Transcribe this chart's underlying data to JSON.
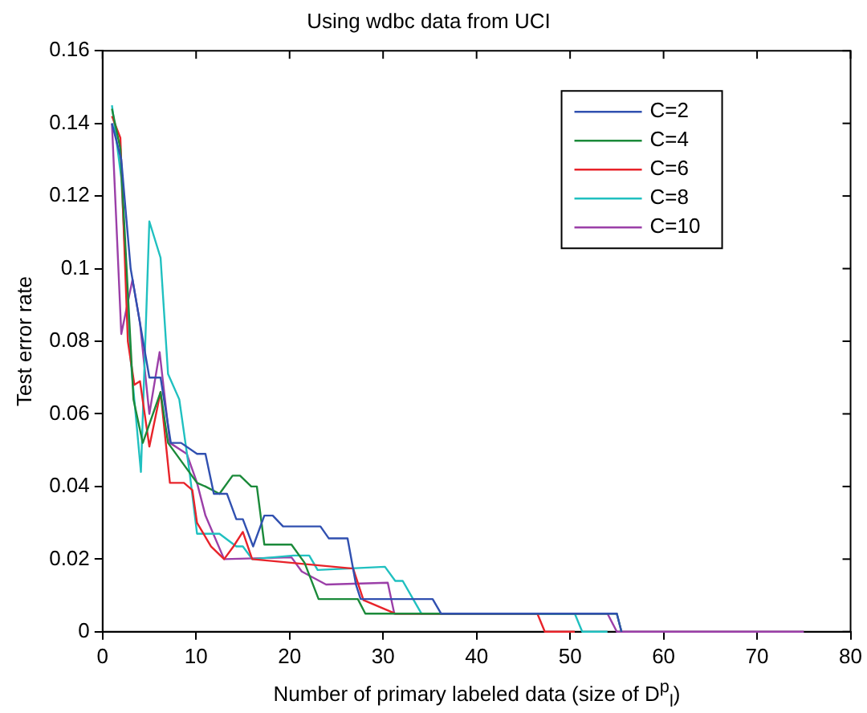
{
  "chart_data": {
    "type": "line",
    "title": "Using wdbc data from UCI",
    "xlabel": "Number of primary labeled data (size of D$^{p}$$_{l}$)",
    "ylabel": "Test error rate",
    "xlim": [
      0,
      80
    ],
    "xticks": [
      0,
      10,
      20,
      30,
      40,
      50,
      60,
      70,
      80
    ],
    "ylim": [
      0,
      0.16
    ],
    "yticks": [
      0,
      0.02,
      0.04,
      0.06,
      0.08,
      0.1,
      0.12,
      0.14,
      0.16
    ],
    "grid": false,
    "legend": "top right",
    "marker": "none",
    "line_style": "solid",
    "series": [
      {
        "name": "C=2",
        "color": "#3050b0",
        "x": [
          1,
          2,
          3,
          4,
          5,
          6.2,
          7.3,
          8.4,
          10.1,
          11,
          11.9,
          13.3,
          14.3,
          15,
          16.1,
          17.3,
          18.2,
          19.3,
          23.3,
          24.2,
          26.2,
          27.1,
          27.6,
          35.3,
          36.2,
          55,
          55.5
        ],
        "values": [
          0.14,
          0.13,
          0.1,
          0.085,
          0.07,
          0.07,
          0.052,
          0.052,
          0.049,
          0.049,
          0.038,
          0.038,
          0.031,
          0.031,
          0.0235,
          0.032,
          0.032,
          0.029,
          0.029,
          0.0257,
          0.0257,
          0.013,
          0.009,
          0.009,
          0.005,
          0.005,
          0
        ]
      },
      {
        "name": "C=4",
        "color": "#1b8a3a",
        "x": [
          1,
          1.9,
          3.3,
          4.3,
          6.2,
          7,
          10.1,
          11,
          12.5,
          13.9,
          14.7,
          15.9,
          16.5,
          17.3,
          20.2,
          21.6,
          23.1,
          27.3,
          28.1,
          55,
          55.5
        ],
        "values": [
          0.144,
          0.133,
          0.064,
          0.052,
          0.066,
          0.052,
          0.041,
          0.04,
          0.038,
          0.043,
          0.043,
          0.04,
          0.04,
          0.024,
          0.024,
          0.019,
          0.009,
          0.009,
          0.005,
          0.005,
          0
        ]
      },
      {
        "name": "C=6",
        "color": "#e8232a",
        "x": [
          1,
          1.9,
          2.7,
          3.4,
          4,
          5,
          6.2,
          7.2,
          8.7,
          9.6,
          10.1,
          11.6,
          13,
          14,
          15,
          16,
          26.8,
          27.9,
          31.3,
          46.5,
          47.3,
          50.5
        ],
        "values": [
          0.142,
          0.136,
          0.08,
          0.068,
          0.069,
          0.051,
          0.066,
          0.041,
          0.041,
          0.039,
          0.03,
          0.0235,
          0.02,
          0.0235,
          0.0275,
          0.02,
          0.0174,
          0.0087,
          0.005,
          0.005,
          0,
          0
        ]
      },
      {
        "name": "C=8",
        "color": "#20c0c0",
        "x": [
          1,
          2,
          3,
          4.1,
          5,
          6.2,
          7,
          8.2,
          9.3,
          10.1,
          12.5,
          14.3,
          15,
          16,
          20.4,
          22.1,
          23,
          30.2,
          31.3,
          32.1,
          34.1,
          50.5,
          51.3,
          54
        ],
        "values": [
          0.145,
          0.125,
          0.075,
          0.044,
          0.113,
          0.103,
          0.071,
          0.064,
          0.044,
          0.027,
          0.027,
          0.0235,
          0.0235,
          0.02,
          0.021,
          0.021,
          0.017,
          0.0179,
          0.014,
          0.014,
          0.005,
          0.005,
          0,
          0
        ]
      },
      {
        "name": "C=10",
        "color": "#9b3fa8",
        "x": [
          1,
          2,
          3.2,
          4,
          5,
          6.1,
          7.2,
          9,
          10.1,
          11,
          13,
          20.2,
          21.3,
          23.9,
          30.5,
          31.2,
          54,
          55,
          75
        ],
        "values": [
          0.14,
          0.082,
          0.097,
          0.085,
          0.06,
          0.077,
          0.052,
          0.049,
          0.041,
          0.032,
          0.02,
          0.0205,
          0.0166,
          0.013,
          0.0135,
          0.005,
          0.005,
          0,
          0
        ]
      }
    ]
  }
}
